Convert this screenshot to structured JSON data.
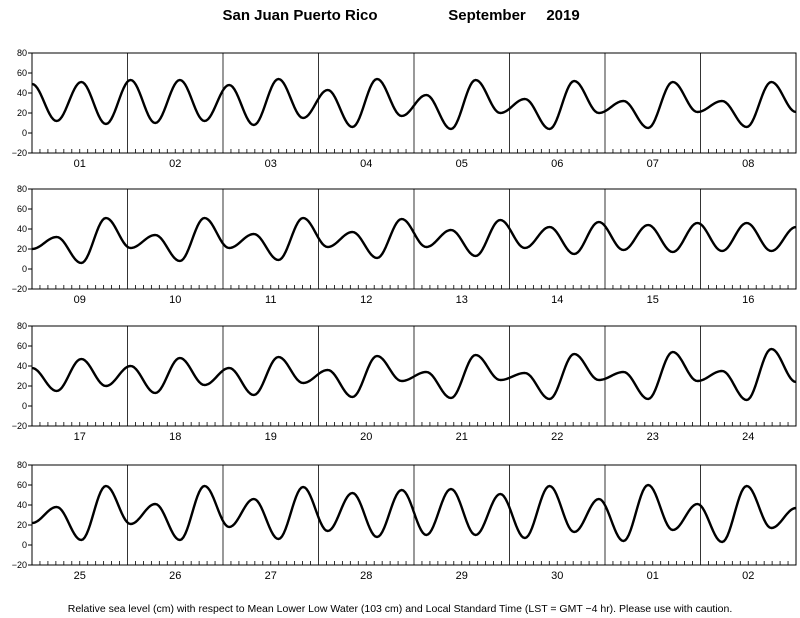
{
  "chart_data": {
    "type": "line",
    "title": {
      "location": "San Juan Puerto Rico",
      "month": "September",
      "year": "2019"
    },
    "ylabel": "",
    "y_ticks": [
      80,
      60,
      40,
      20,
      0,
      -20
    ],
    "ylim": [
      -20,
      80
    ],
    "grid": "vertical day separators",
    "footer": "Relative sea level (cm) with respect to Mean Lower Low Water (103 cm) and Local Standard Time (LST = GMT −4 hr). Please use with caution.",
    "line_color": "#000000",
    "panels": [
      {
        "days": [
          "01",
          "02",
          "03",
          "04",
          "05",
          "06",
          "07",
          "08"
        ],
        "tide_extrema_cm": [
          49,
          12,
          51,
          9,
          53,
          10,
          53,
          12,
          48,
          8,
          54,
          15,
          43,
          6,
          54,
          17,
          38,
          4,
          53,
          20,
          34,
          4,
          52,
          20,
          32,
          5,
          51,
          21,
          32,
          6,
          51,
          21
        ]
      },
      {
        "days": [
          "09",
          "10",
          "11",
          "12",
          "13",
          "14",
          "15",
          "16"
        ],
        "tide_extrema_cm": [
          20,
          32,
          6,
          51,
          21,
          34,
          8,
          51,
          21,
          35,
          9,
          51,
          22,
          37,
          11,
          50,
          22,
          39,
          13,
          49,
          21,
          42,
          15,
          47,
          19,
          44,
          17,
          46,
          18,
          46,
          18,
          42
        ]
      },
      {
        "days": [
          "17",
          "18",
          "19",
          "20",
          "21",
          "22",
          "23",
          "24"
        ],
        "tide_extrema_cm": [
          38,
          15,
          47,
          20,
          40,
          13,
          48,
          21,
          38,
          11,
          49,
          23,
          36,
          9,
          50,
          25,
          34,
          8,
          51,
          26,
          33,
          7,
          52,
          26,
          34,
          7,
          54,
          25,
          35,
          6,
          57,
          24
        ]
      },
      {
        "days": [
          "25",
          "26",
          "27",
          "28",
          "29",
          "30",
          "01",
          "02"
        ],
        "tide_extrema_cm": [
          22,
          38,
          5,
          59,
          21,
          41,
          5,
          59,
          18,
          46,
          6,
          58,
          14,
          52,
          8,
          55,
          10,
          56,
          10,
          51,
          7,
          59,
          13,
          46,
          4,
          60,
          15,
          41,
          3,
          59,
          17,
          37
        ]
      }
    ]
  }
}
